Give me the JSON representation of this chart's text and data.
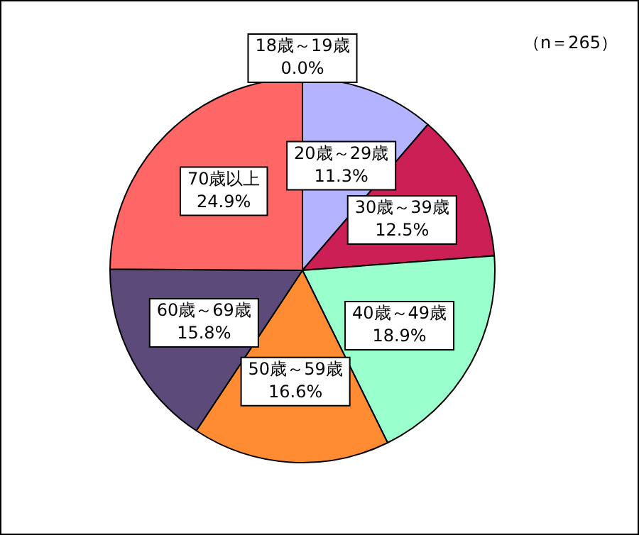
{
  "chart_data": {
    "type": "pie",
    "categories": [
      "18歳～19歳",
      "20歳～29歳",
      "30歳～39歳",
      "40歳～49歳",
      "50歳～59歳",
      "60歳～69歳",
      "70歳以上"
    ],
    "values": [
      0.0,
      11.3,
      12.5,
      18.9,
      16.6,
      15.8,
      24.9
    ],
    "value_labels": [
      "0.0%",
      "11.3%",
      "12.5%",
      "18.9%",
      "16.6%",
      "15.8%",
      "24.9%"
    ],
    "colors": [
      "#ffffff",
      "#b3b3ff",
      "#cc1f55",
      "#99ffcc",
      "#ff8c33",
      "#5c4a7a",
      "#ff6666"
    ],
    "annotations": [
      "（n＝265）"
    ],
    "legend": false
  }
}
